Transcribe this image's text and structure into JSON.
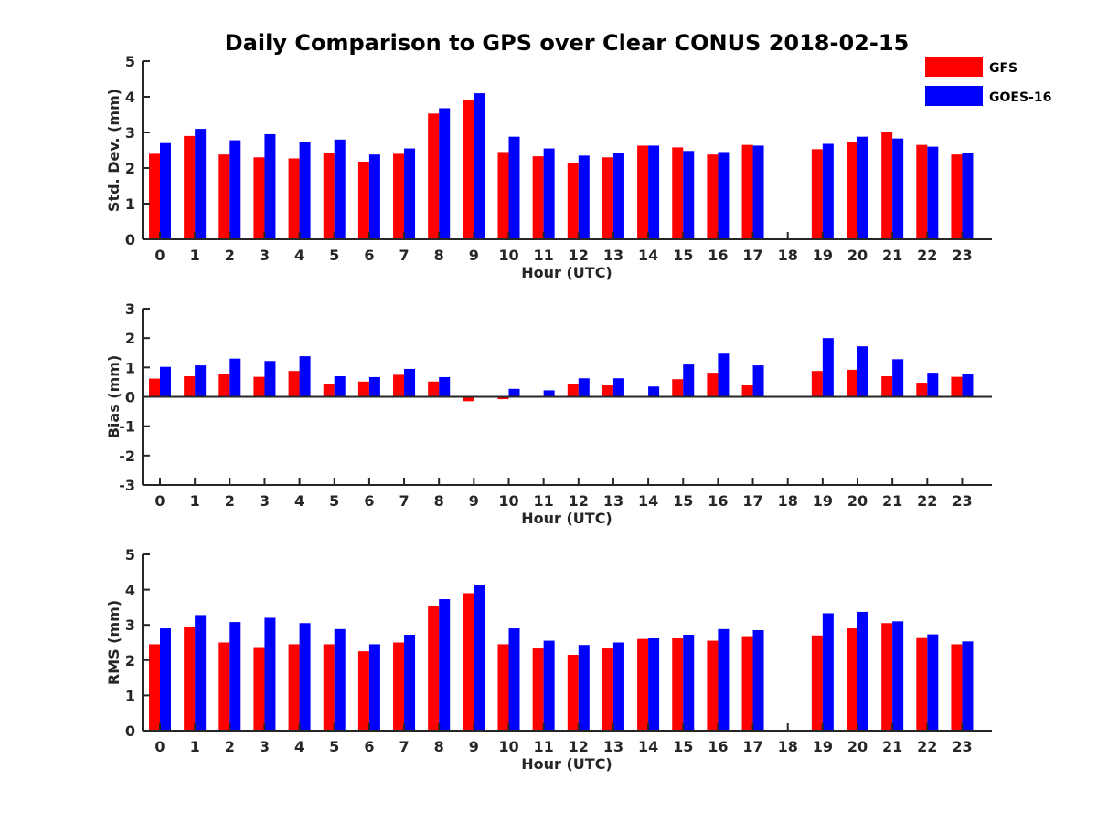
{
  "chart_data": {
    "title": "Daily Comparison to GPS over Clear CONUS 2018-02-15",
    "legend": {
      "placement": "top-right",
      "entries": [
        "GFS",
        "GOES-16"
      ]
    },
    "colors": {
      "GFS": "#ff0000",
      "GOES-16": "#0000ff"
    },
    "categories": [
      "0",
      "1",
      "2",
      "3",
      "4",
      "5",
      "6",
      "7",
      "8",
      "9",
      "10",
      "11",
      "12",
      "13",
      "14",
      "15",
      "16",
      "17",
      "18",
      "19",
      "20",
      "21",
      "22",
      "23"
    ],
    "panels": [
      {
        "type": "bar",
        "ylabel": "Std. Dev. (mm)",
        "xlabel": "Hour (UTC)",
        "ylim": [
          0,
          5
        ],
        "yticks": [
          "0",
          "1",
          "2",
          "3",
          "4",
          "5"
        ],
        "series": [
          {
            "name": "GFS",
            "values": [
              2.4,
              2.9,
              2.38,
              2.3,
              2.27,
              2.43,
              2.18,
              2.4,
              3.53,
              3.9,
              2.45,
              2.33,
              2.13,
              2.3,
              2.63,
              2.58,
              2.38,
              2.65,
              null,
              2.53,
              2.73,
              3.0,
              2.65,
              2.38
            ]
          },
          {
            "name": "GOES-16",
            "values": [
              2.7,
              3.1,
              2.78,
              2.95,
              2.73,
              2.8,
              2.38,
              2.55,
              3.68,
              4.1,
              2.88,
              2.55,
              2.35,
              2.43,
              2.63,
              2.48,
              2.45,
              2.63,
              null,
              2.68,
              2.88,
              2.83,
              2.6,
              2.43
            ]
          }
        ]
      },
      {
        "type": "bar",
        "ylabel": "Bias (mm)",
        "xlabel": "Hour (UTC)",
        "ylim": [
          -3,
          3
        ],
        "yticks": [
          "-3",
          "-2",
          "-1",
          "0",
          "1",
          "2",
          "3"
        ],
        "series": [
          {
            "name": "GFS",
            "values": [
              0.62,
              0.7,
              0.78,
              0.68,
              0.88,
              0.45,
              0.52,
              0.75,
              0.52,
              -0.15,
              -0.08,
              0.0,
              0.45,
              0.4,
              0.0,
              0.6,
              0.82,
              0.42,
              null,
              0.88,
              0.92,
              0.7,
              0.48,
              0.68
            ]
          },
          {
            "name": "GOES-16",
            "values": [
              1.02,
              1.07,
              1.3,
              1.22,
              1.38,
              0.7,
              0.67,
              0.95,
              0.67,
              0.02,
              0.27,
              0.22,
              0.63,
              0.63,
              0.35,
              1.1,
              1.47,
              1.07,
              null,
              2.0,
              1.72,
              1.28,
              0.82,
              0.77
            ]
          }
        ]
      },
      {
        "type": "bar",
        "ylabel": "RMS (mm)",
        "xlabel": "Hour (UTC)",
        "ylim": [
          0,
          5
        ],
        "yticks": [
          "0",
          "1",
          "2",
          "3",
          "4",
          "5"
        ],
        "series": [
          {
            "name": "GFS",
            "values": [
              2.45,
              2.95,
              2.5,
              2.37,
              2.45,
              2.45,
              2.25,
              2.5,
              3.55,
              3.9,
              2.45,
              2.33,
              2.15,
              2.33,
              2.6,
              2.63,
              2.55,
              2.68,
              null,
              2.7,
              2.9,
              3.05,
              2.65,
              2.45
            ]
          },
          {
            "name": "GOES-16",
            "values": [
              2.9,
              3.28,
              3.08,
              3.2,
              3.05,
              2.88,
              2.45,
              2.72,
              3.73,
              4.12,
              2.9,
              2.55,
              2.43,
              2.5,
              2.63,
              2.72,
              2.88,
              2.85,
              null,
              3.33,
              3.37,
              3.1,
              2.73,
              2.53
            ]
          }
        ]
      }
    ]
  }
}
